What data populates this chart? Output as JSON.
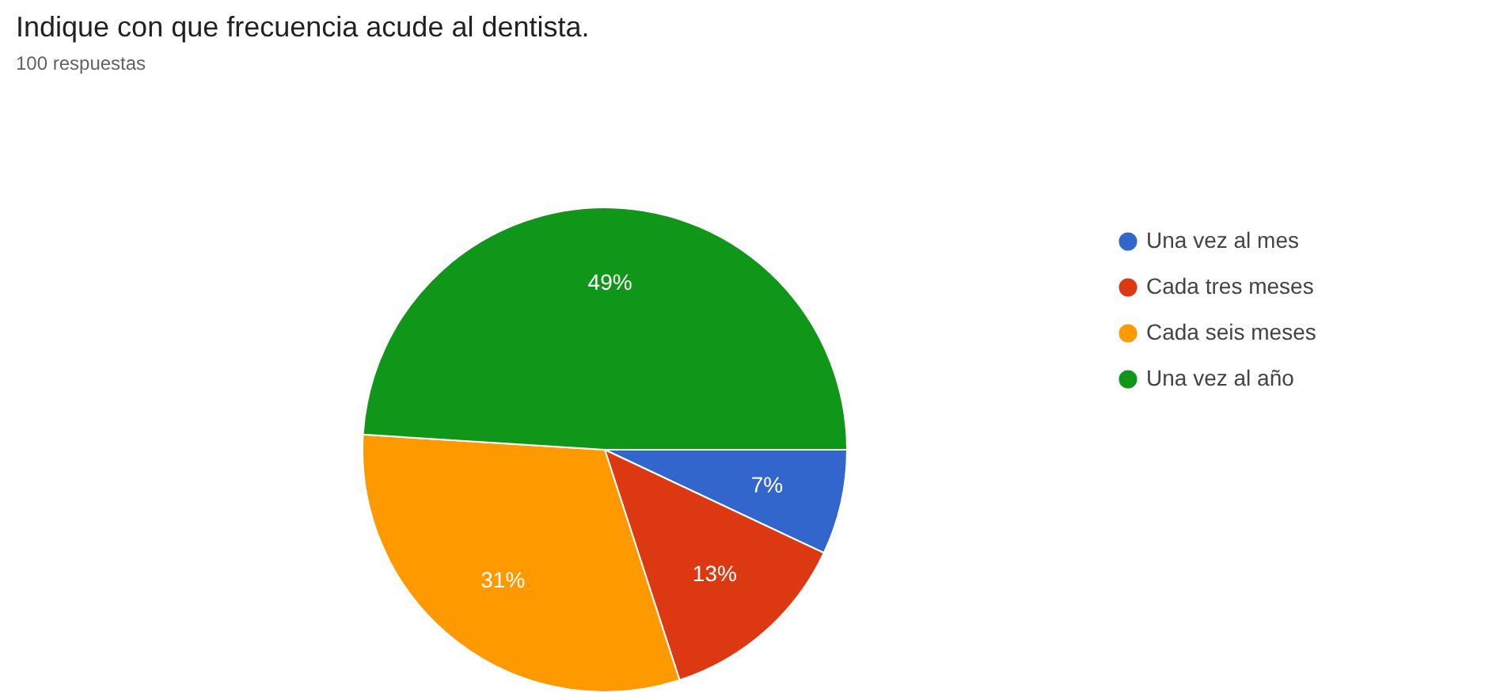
{
  "chart_data": {
    "type": "pie",
    "title": "Indique con que frecuencia acude al dentista.",
    "subtitle": "100 respuestas",
    "categories": [
      "Una vez al mes",
      "Cada tres meses",
      "Cada seis meses",
      "Una vez al año"
    ],
    "values": [
      7,
      13,
      31,
      49
    ],
    "value_labels": [
      "7%",
      "13%",
      "31%",
      "49%"
    ],
    "colors": [
      "#3366cc",
      "#dc3912",
      "#ff9900",
      "#109618"
    ],
    "legend": "right"
  }
}
